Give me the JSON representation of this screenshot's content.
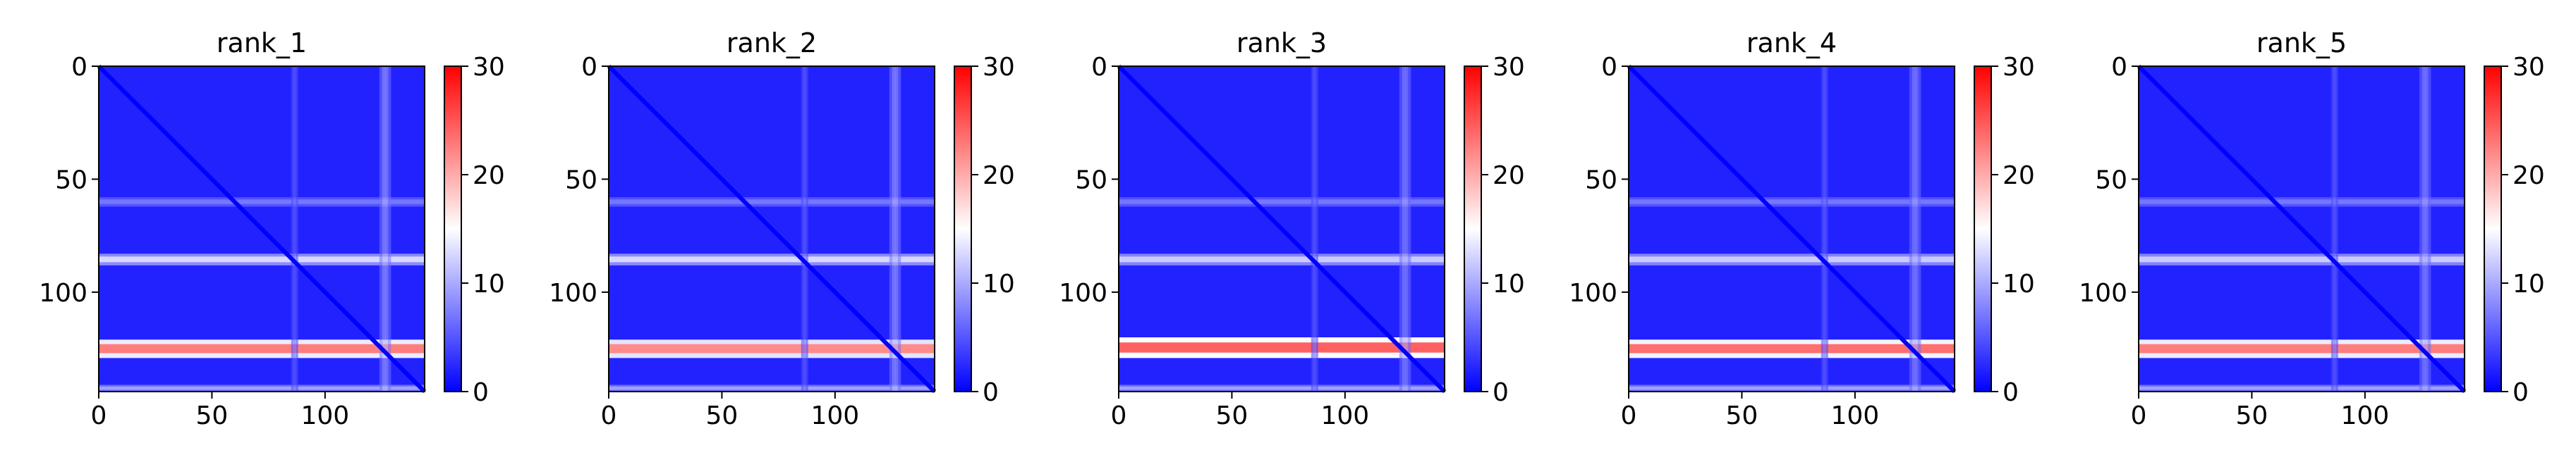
{
  "chart_data": {
    "type": "heatmap",
    "colormap": "bwr",
    "colormap_colors": [
      "#0000ff",
      "#ffffff",
      "#ff0000"
    ],
    "value_range": [
      0,
      30
    ],
    "colorbar_ticks": [
      "0",
      "10",
      "20",
      "30"
    ],
    "x_ticks": [
      "0",
      "50",
      "100"
    ],
    "y_ticks": [
      "0",
      "50",
      "100"
    ],
    "xlim": [
      0,
      144
    ],
    "ylim": [
      144,
      0
    ],
    "grid": false,
    "panels": [
      {
        "title": "rank_1",
        "bands": [
          {
            "axis": "row",
            "start": 121,
            "end": 129,
            "peak": 27,
            "note": "strong red band"
          },
          {
            "axis": "row",
            "start": 83,
            "end": 88,
            "peak": 15
          },
          {
            "axis": "row",
            "start": 58,
            "end": 62,
            "peak": 8
          },
          {
            "axis": "row",
            "start": 141,
            "end": 144,
            "peak": 11
          },
          {
            "axis": "col",
            "start": 124,
            "end": 129,
            "peak": 12
          },
          {
            "axis": "col",
            "start": 85,
            "end": 88,
            "peak": 7
          }
        ]
      },
      {
        "title": "rank_2",
        "bands": [
          {
            "axis": "row",
            "start": 121,
            "end": 129,
            "peak": 26
          },
          {
            "axis": "row",
            "start": 83,
            "end": 88,
            "peak": 15
          },
          {
            "axis": "row",
            "start": 58,
            "end": 62,
            "peak": 8
          },
          {
            "axis": "row",
            "start": 141,
            "end": 144,
            "peak": 11
          },
          {
            "axis": "col",
            "start": 124,
            "end": 129,
            "peak": 12
          },
          {
            "axis": "col",
            "start": 85,
            "end": 88,
            "peak": 7
          }
        ]
      },
      {
        "title": "rank_3",
        "bands": [
          {
            "axis": "row",
            "start": 120,
            "end": 129,
            "peak": 29
          },
          {
            "axis": "row",
            "start": 83,
            "end": 88,
            "peak": 14
          },
          {
            "axis": "row",
            "start": 58,
            "end": 62,
            "peak": 8
          },
          {
            "axis": "row",
            "start": 141,
            "end": 144,
            "peak": 11
          },
          {
            "axis": "col",
            "start": 124,
            "end": 129,
            "peak": 11
          },
          {
            "axis": "col",
            "start": 85,
            "end": 88,
            "peak": 7
          }
        ]
      },
      {
        "title": "rank_4",
        "bands": [
          {
            "axis": "row",
            "start": 121,
            "end": 129,
            "peak": 28
          },
          {
            "axis": "row",
            "start": 83,
            "end": 88,
            "peak": 14
          },
          {
            "axis": "row",
            "start": 58,
            "end": 62,
            "peak": 8
          },
          {
            "axis": "row",
            "start": 141,
            "end": 144,
            "peak": 11
          },
          {
            "axis": "col",
            "start": 124,
            "end": 129,
            "peak": 11
          },
          {
            "axis": "col",
            "start": 85,
            "end": 88,
            "peak": 7
          }
        ]
      },
      {
        "title": "rank_5",
        "bands": [
          {
            "axis": "row",
            "start": 121,
            "end": 129,
            "peak": 27
          },
          {
            "axis": "row",
            "start": 83,
            "end": 88,
            "peak": 14
          },
          {
            "axis": "row",
            "start": 58,
            "end": 62,
            "peak": 8
          },
          {
            "axis": "row",
            "start": 141,
            "end": 144,
            "peak": 11
          },
          {
            "axis": "col",
            "start": 124,
            "end": 129,
            "peak": 11
          },
          {
            "axis": "col",
            "start": 85,
            "end": 88,
            "peak": 7
          }
        ]
      }
    ],
    "diagonal_value": 0,
    "background_value": 2
  }
}
